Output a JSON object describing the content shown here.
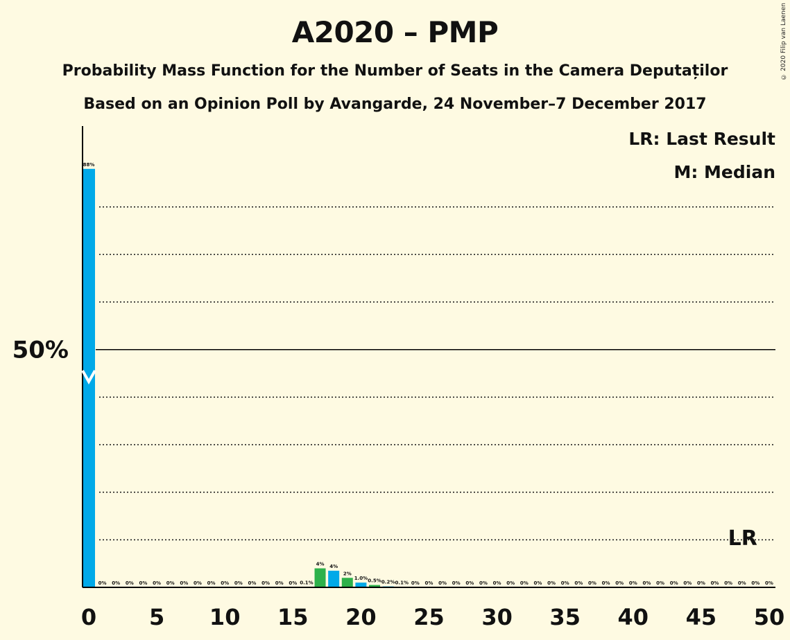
{
  "chart_data": {
    "type": "bar",
    "title": "A2020 – PMP",
    "subtitle": "Probability Mass Function for the Number of Seats in the Camera Deputaților",
    "subtitle2": "Based on an Opinion Poll by Avangarde, 24 November–7 December 2017",
    "copyright": "© 2020 Filip van Laenen",
    "legend": {
      "lr": "LR: Last Result",
      "median": "M: Median"
    },
    "lr_marker": {
      "label": "LR",
      "seats": 48
    },
    "median_marker": {
      "label": "M",
      "seats": 0
    },
    "y_tick_label": "50%",
    "y_tick_value": 50,
    "ylim": [
      0,
      97
    ],
    "xlim": [
      0,
      50
    ],
    "x_ticks": [
      0,
      5,
      10,
      15,
      20,
      25,
      30,
      35,
      40,
      45,
      50
    ],
    "colors": {
      "blue": "#00a9e8",
      "green": "#2db14a",
      "background": "#fefae2"
    },
    "bars": [
      {
        "seats": 0,
        "value": 88,
        "label": "88%",
        "color": "blue"
      },
      {
        "seats": 1,
        "value": 0,
        "label": "0%",
        "color": "green"
      },
      {
        "seats": 2,
        "value": 0,
        "label": "0%",
        "color": "blue"
      },
      {
        "seats": 3,
        "value": 0,
        "label": "0%",
        "color": "green"
      },
      {
        "seats": 4,
        "value": 0,
        "label": "0%",
        "color": "blue"
      },
      {
        "seats": 5,
        "value": 0,
        "label": "0%",
        "color": "green"
      },
      {
        "seats": 6,
        "value": 0,
        "label": "0%",
        "color": "blue"
      },
      {
        "seats": 7,
        "value": 0,
        "label": "0%",
        "color": "green"
      },
      {
        "seats": 8,
        "value": 0,
        "label": "0%",
        "color": "blue"
      },
      {
        "seats": 9,
        "value": 0,
        "label": "0%",
        "color": "green"
      },
      {
        "seats": 10,
        "value": 0,
        "label": "0%",
        "color": "blue"
      },
      {
        "seats": 11,
        "value": 0,
        "label": "0%",
        "color": "green"
      },
      {
        "seats": 12,
        "value": 0,
        "label": "0%",
        "color": "blue"
      },
      {
        "seats": 13,
        "value": 0,
        "label": "0%",
        "color": "green"
      },
      {
        "seats": 14,
        "value": 0,
        "label": "0%",
        "color": "blue"
      },
      {
        "seats": 15,
        "value": 0,
        "label": "0%",
        "color": "green"
      },
      {
        "seats": 16,
        "value": 0.1,
        "label": "0.1%",
        "color": "blue"
      },
      {
        "seats": 17,
        "value": 4,
        "label": "4%",
        "color": "green"
      },
      {
        "seats": 18,
        "value": 3.5,
        "label": "4%",
        "color": "blue"
      },
      {
        "seats": 19,
        "value": 2,
        "label": "2%",
        "color": "green"
      },
      {
        "seats": 20,
        "value": 1.0,
        "label": "1.0%",
        "color": "blue"
      },
      {
        "seats": 21,
        "value": 0.5,
        "label": "0.5%",
        "color": "green"
      },
      {
        "seats": 22,
        "value": 0.2,
        "label": "0.2%",
        "color": "blue"
      },
      {
        "seats": 23,
        "value": 0.1,
        "label": "0.1%",
        "color": "green"
      },
      {
        "seats": 24,
        "value": 0,
        "label": "0%",
        "color": "blue"
      },
      {
        "seats": 25,
        "value": 0,
        "label": "0%",
        "color": "green"
      },
      {
        "seats": 26,
        "value": 0,
        "label": "0%",
        "color": "blue"
      },
      {
        "seats": 27,
        "value": 0,
        "label": "0%",
        "color": "green"
      },
      {
        "seats": 28,
        "value": 0,
        "label": "0%",
        "color": "blue"
      },
      {
        "seats": 29,
        "value": 0,
        "label": "0%",
        "color": "green"
      },
      {
        "seats": 30,
        "value": 0,
        "label": "0%",
        "color": "blue"
      },
      {
        "seats": 31,
        "value": 0,
        "label": "0%",
        "color": "green"
      },
      {
        "seats": 32,
        "value": 0,
        "label": "0%",
        "color": "blue"
      },
      {
        "seats": 33,
        "value": 0,
        "label": "0%",
        "color": "green"
      },
      {
        "seats": 34,
        "value": 0,
        "label": "0%",
        "color": "blue"
      },
      {
        "seats": 35,
        "value": 0,
        "label": "0%",
        "color": "green"
      },
      {
        "seats": 36,
        "value": 0,
        "label": "0%",
        "color": "blue"
      },
      {
        "seats": 37,
        "value": 0,
        "label": "0%",
        "color": "green"
      },
      {
        "seats": 38,
        "value": 0,
        "label": "0%",
        "color": "blue"
      },
      {
        "seats": 39,
        "value": 0,
        "label": "0%",
        "color": "green"
      },
      {
        "seats": 40,
        "value": 0,
        "label": "0%",
        "color": "blue"
      },
      {
        "seats": 41,
        "value": 0,
        "label": "0%",
        "color": "green"
      },
      {
        "seats": 42,
        "value": 0,
        "label": "0%",
        "color": "blue"
      },
      {
        "seats": 43,
        "value": 0,
        "label": "0%",
        "color": "green"
      },
      {
        "seats": 44,
        "value": 0,
        "label": "0%",
        "color": "blue"
      },
      {
        "seats": 45,
        "value": 0,
        "label": "0%",
        "color": "green"
      },
      {
        "seats": 46,
        "value": 0,
        "label": "0%",
        "color": "blue"
      },
      {
        "seats": 47,
        "value": 0,
        "label": "0%",
        "color": "green"
      },
      {
        "seats": 48,
        "value": 0,
        "label": "0%",
        "color": "blue"
      },
      {
        "seats": 49,
        "value": 0,
        "label": "0%",
        "color": "green"
      },
      {
        "seats": 50,
        "value": 0,
        "label": "0%",
        "color": "blue"
      }
    ]
  }
}
